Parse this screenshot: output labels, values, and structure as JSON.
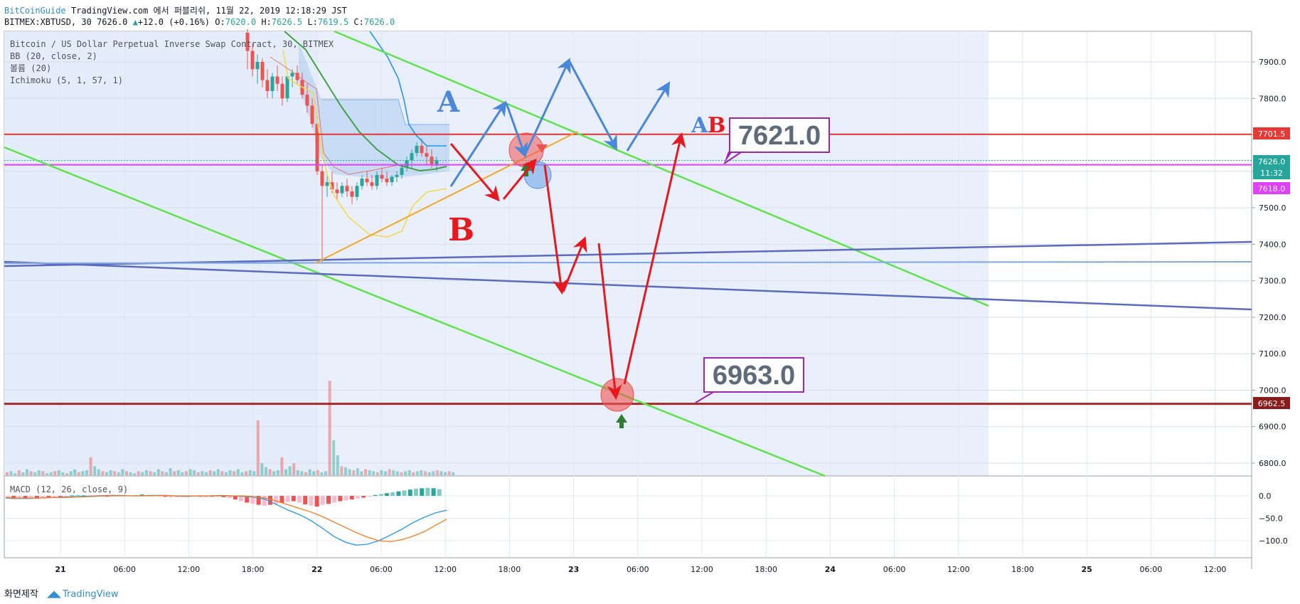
{
  "header": {
    "author": "BitCoinGuide",
    "publish_text": "TradingView.com 에서 퍼블리쉬, 11월 22, 2019 12:18:29 JST",
    "symbol": "BITMEX:XBTUSD, 30",
    "last": "7626.0",
    "change": "+12.0 (+0.16%)",
    "o_label": "O:",
    "o": "7620.0",
    "h_label": "H:",
    "h": "7626.5",
    "l_label": "L:",
    "l": "7619.5",
    "c_label": "C:",
    "c": "7626.0"
  },
  "legend": {
    "title": "Bitcoin / US Dollar Perpetual Inverse Swap Contract, 30, BITMEX",
    "bb": "BB (20, close, 2)",
    "volume": "볼륨 (20)",
    "ichimoku": "Ichimoku (5, 1, 57, 1)",
    "macd": "MACD (12, 26, close, 9)"
  },
  "annotations": {
    "label_a": "A",
    "label_b": "B",
    "label_ab_a": "A",
    "label_ab_b": "B",
    "callout_top": "7621.0",
    "callout_bottom": "6963.0"
  },
  "price_tags": {
    "resistance": "7701.5",
    "current": "7626.0",
    "countdown": "11:32",
    "magenta": "7618.0",
    "support": "6962.5"
  },
  "footer": {
    "made": "화면제작",
    "tv": "TradingView"
  },
  "colors": {
    "bull": "#26a69a",
    "bear": "#ef5350",
    "red_line": "#e53935",
    "magenta": "#e040fb",
    "green_channel": "#5ee34a",
    "blue_trend": "#5c6bc0",
    "arrow_blue": "#4a86d9",
    "arrow_red": "#e8181e",
    "orange": "#f5a623",
    "dark_red": "#a52a2a"
  },
  "chart_data": {
    "type": "candlestick",
    "ylim": [
      6750,
      7990
    ],
    "price_ticks": [
      6800,
      6900,
      7000,
      7100,
      7200,
      7300,
      7400,
      7500,
      7600,
      7700,
      7800,
      7900
    ],
    "macd_ticks": [
      0.0,
      -50.0,
      -100.0
    ],
    "macd_tick_labels": [
      "0.0",
      "−50.0",
      "−100.0"
    ],
    "x_ticks": [
      "21",
      "06:00",
      "12:00",
      "18:00",
      "22",
      "06:00",
      "12:00",
      "18:00",
      "23",
      "06:00",
      "12:00",
      "18:00",
      "24",
      "06:00",
      "12:00",
      "18:00",
      "25",
      "06:00",
      "12:00"
    ],
    "levels": {
      "resistance": 7701.5,
      "current": 7626.0,
      "magenta": 7618.0,
      "support": 6962.5
    },
    "candles": [
      [
        7980,
        7990,
        7880,
        7930
      ],
      [
        7930,
        7950,
        7860,
        7880
      ],
      [
        7880,
        7920,
        7840,
        7900
      ],
      [
        7900,
        7910,
        7830,
        7850
      ],
      [
        7850,
        7880,
        7800,
        7820
      ],
      [
        7820,
        7870,
        7800,
        7860
      ],
      [
        7860,
        7890,
        7820,
        7840
      ],
      [
        7840,
        7860,
        7780,
        7800
      ],
      [
        7800,
        7870,
        7790,
        7860
      ],
      [
        7860,
        7880,
        7830,
        7870
      ],
      [
        7870,
        7890,
        7840,
        7850
      ],
      [
        7850,
        7870,
        7800,
        7810
      ],
      [
        7810,
        7840,
        7760,
        7780
      ],
      [
        7780,
        7800,
        7720,
        7730
      ],
      [
        7730,
        7750,
        7590,
        7600
      ],
      [
        7600,
        7620,
        7350,
        7560
      ],
      [
        7560,
        7590,
        7530,
        7570
      ],
      [
        7570,
        7600,
        7540,
        7550
      ],
      [
        7550,
        7570,
        7520,
        7540
      ],
      [
        7540,
        7570,
        7530,
        7560
      ],
      [
        7560,
        7580,
        7530,
        7545
      ],
      [
        7545,
        7560,
        7510,
        7530
      ],
      [
        7530,
        7570,
        7520,
        7560
      ],
      [
        7560,
        7590,
        7550,
        7580
      ],
      [
        7580,
        7600,
        7560,
        7570
      ],
      [
        7570,
        7590,
        7550,
        7560
      ],
      [
        7560,
        7600,
        7550,
        7590
      ],
      [
        7590,
        7610,
        7570,
        7580
      ],
      [
        7580,
        7600,
        7560,
        7570
      ],
      [
        7570,
        7590,
        7560,
        7585
      ],
      [
        7585,
        7600,
        7570,
        7590
      ],
      [
        7590,
        7620,
        7580,
        7610
      ],
      [
        7610,
        7640,
        7600,
        7630
      ],
      [
        7630,
        7660,
        7610,
        7650
      ],
      [
        7650,
        7680,
        7640,
        7670
      ],
      [
        7670,
        7690,
        7640,
        7650
      ],
      [
        7650,
        7670,
        7620,
        7640
      ],
      [
        7640,
        7660,
        7610,
        7620
      ],
      [
        7620,
        7640,
        7600,
        7630
      ]
    ],
    "volume": [
      3,
      4,
      2,
      5,
      3,
      6,
      4,
      3,
      5,
      4,
      2,
      3,
      4,
      5,
      3,
      2,
      4,
      6,
      3,
      4,
      5,
      18,
      9,
      6,
      4,
      3,
      5,
      4,
      3,
      6,
      4,
      3,
      2,
      4,
      3,
      5,
      4,
      3,
      6,
      4,
      3,
      7,
      4,
      5,
      3,
      4,
      6,
      5,
      3,
      4,
      3,
      5,
      4,
      6,
      4,
      3,
      5,
      4,
      6,
      3,
      4,
      5,
      4,
      55,
      12,
      8,
      6,
      4,
      5,
      18,
      6,
      9,
      12,
      5,
      4,
      3,
      6,
      4,
      5,
      3,
      4,
      95,
      35,
      20,
      9,
      8,
      6,
      5,
      7,
      4,
      6,
      5,
      4,
      3,
      5,
      4,
      6,
      5,
      4,
      3,
      4,
      5,
      3,
      4,
      5,
      4,
      3,
      4,
      5,
      4,
      3,
      4,
      3
    ],
    "macd_hist": [
      -6,
      -7,
      -6,
      -5,
      -6,
      -5,
      -4,
      -3,
      -4,
      -2,
      -1,
      1,
      2,
      1,
      -1,
      -2,
      -1,
      -2,
      -1,
      1,
      2,
      1,
      2,
      3,
      2,
      1,
      -1,
      -2,
      -3,
      -2,
      -3,
      -2,
      -1,
      -2,
      -3,
      -2,
      -1,
      -3,
      -5,
      -8,
      -12,
      -15,
      -18,
      -20,
      -22,
      -20,
      -18,
      -16,
      -14,
      -12,
      -15,
      -19,
      -22,
      -24,
      -20,
      -18,
      -15,
      -12,
      -10,
      -8,
      -6,
      -4,
      -2,
      2,
      4,
      6,
      8,
      10,
      12,
      14,
      16,
      17,
      18,
      17,
      15
    ],
    "macd_line": [
      -5,
      -6,
      -6,
      -5,
      -4,
      -3,
      -2,
      -1,
      0,
      1,
      1,
      0,
      0,
      1,
      1,
      0,
      -1,
      0,
      0,
      1,
      0,
      -1,
      -3,
      -8,
      -20,
      -32,
      -42,
      -55,
      -72,
      -90,
      -103,
      -110,
      -108,
      -100,
      -88,
      -75,
      -60,
      -48,
      -38,
      -32
    ],
    "signal_line": [
      -4,
      -5,
      -5,
      -5,
      -4,
      -4,
      -3,
      -2,
      -1,
      0,
      0,
      0,
      0,
      0,
      1,
      0,
      0,
      0,
      0,
      0,
      0,
      0,
      -2,
      -5,
      -12,
      -20,
      -28,
      -36,
      -46,
      -58,
      -70,
      -82,
      -92,
      -100,
      -102,
      -98,
      -90,
      -80,
      -66,
      -52
    ]
  }
}
